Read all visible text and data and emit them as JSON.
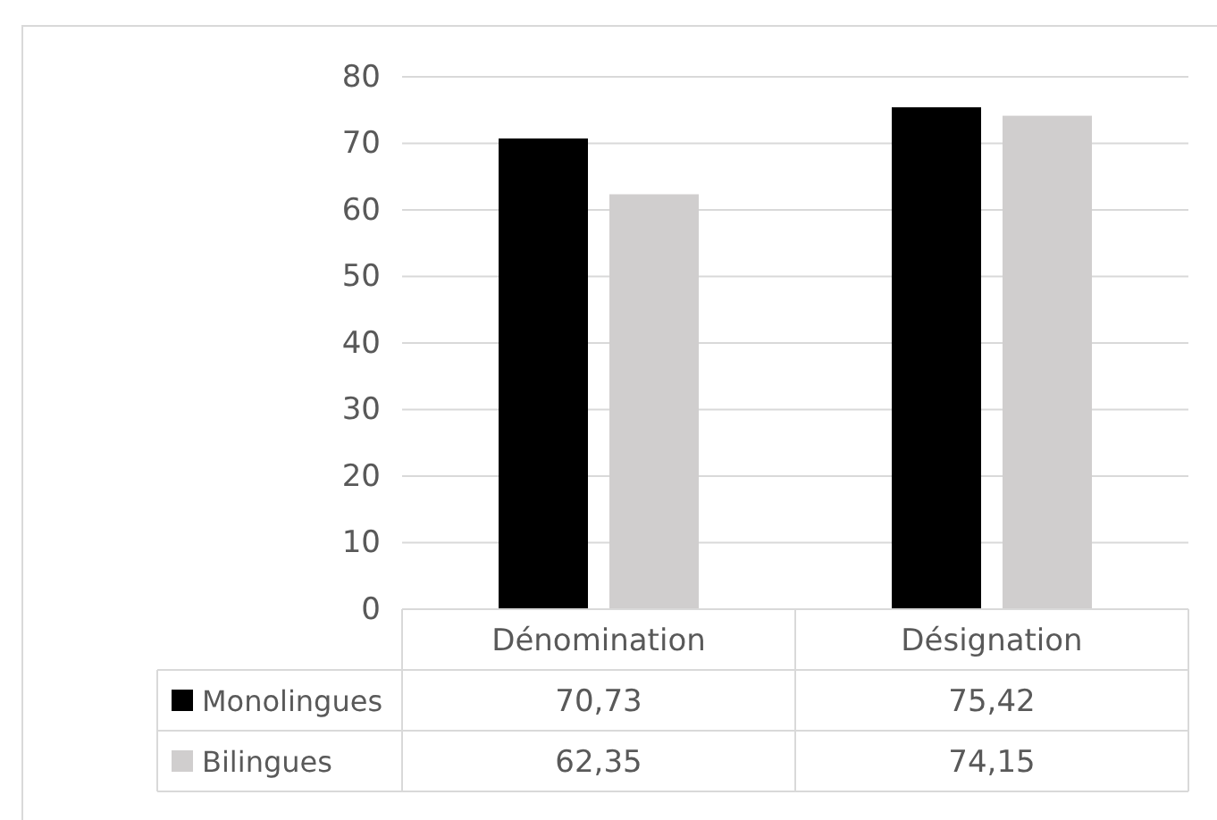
{
  "chart_data": {
    "type": "bar",
    "categories": [
      "Dénomination",
      "Désignation"
    ],
    "series": [
      {
        "name": "Monolingues",
        "color": "#000000",
        "values": [
          70.73,
          75.42
        ],
        "value_labels": [
          "70,73",
          "75,42"
        ]
      },
      {
        "name": "Bilingues",
        "color": "#d0cece",
        "values": [
          62.35,
          74.15
        ],
        "value_labels": [
          "62,35",
          "74,15"
        ]
      }
    ],
    "ylim": [
      0,
      80
    ],
    "yticks": [
      0,
      10,
      20,
      30,
      40,
      50,
      60,
      70,
      80
    ],
    "grid": "y",
    "legend": "bottom"
  }
}
